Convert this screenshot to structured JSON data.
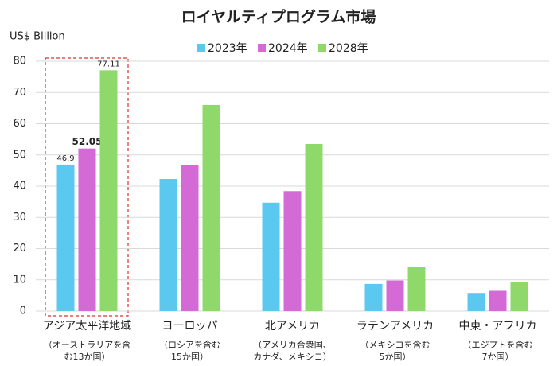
{
  "chart_data": {
    "type": "bar",
    "title": "ロイヤルティプログラム市場",
    "y_label": "US$ Billion",
    "categories": [
      "アジア太平洋地域",
      "ヨーロッパ",
      "北アメリカ",
      "ラテンアメリカ",
      "中東・アフリカ"
    ],
    "category_notes": [
      [
        "（オーストラリアを含",
        "む13か国）"
      ],
      [
        "（ロシアを含む",
        "15か国）"
      ],
      [
        "（アメリカ合衆国、",
        "カナダ、メキシコ）"
      ],
      [
        "（メキシコを含む",
        "5か国）"
      ],
      [
        "（エジプトを含む",
        "7か国）"
      ]
    ],
    "series": [
      {
        "name": "2023年",
        "color": "#5bc8f0",
        "values": [
          46.9,
          42.3,
          34.7,
          8.7,
          5.8
        ],
        "value_labels": [
          "46.9",
          null,
          null,
          null,
          null
        ]
      },
      {
        "name": "2024年",
        "color": "#d36ad6",
        "values": [
          52.05,
          46.8,
          38.4,
          9.8,
          6.5
        ],
        "value_labels": [
          "52.05",
          null,
          null,
          null,
          null
        ]
      },
      {
        "name": "2028年",
        "color": "#8fd86a",
        "values": [
          77.11,
          66,
          53.5,
          14.2,
          9.4
        ],
        "value_labels": [
          "77.11",
          null,
          null,
          null,
          null
        ]
      }
    ],
    "ylim": [
      0,
      80
    ],
    "yticks": [
      0,
      10,
      20,
      30,
      40,
      50,
      60,
      70,
      80
    ],
    "grid": true,
    "legend": "top"
  }
}
